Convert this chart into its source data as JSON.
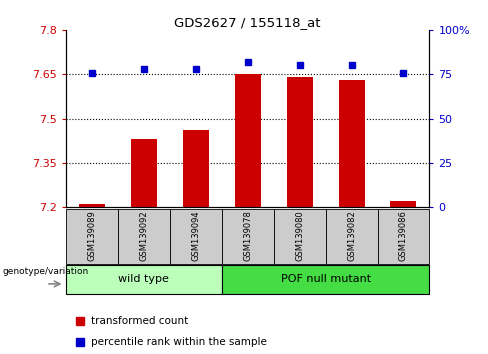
{
  "title": "GDS2627 / 155118_at",
  "samples": [
    "GSM139089",
    "GSM139092",
    "GSM139094",
    "GSM139078",
    "GSM139080",
    "GSM139082",
    "GSM139086"
  ],
  "red_values": [
    7.21,
    7.43,
    7.46,
    7.65,
    7.64,
    7.63,
    7.22
  ],
  "blue_values": [
    76,
    78,
    78,
    82,
    80,
    80,
    76
  ],
  "ylim_left": [
    7.2,
    7.8
  ],
  "ylim_right": [
    0,
    100
  ],
  "yticks_left": [
    7.2,
    7.35,
    7.5,
    7.65,
    7.8
  ],
  "yticks_right": [
    0,
    25,
    50,
    75,
    100
  ],
  "ytick_labels_left": [
    "7.2",
    "7.35",
    "7.5",
    "7.65",
    "7.8"
  ],
  "ytick_labels_right": [
    "0",
    "25",
    "50",
    "75",
    "100%"
  ],
  "hlines": [
    7.35,
    7.5,
    7.65
  ],
  "group_bg_light": "#bbffbb",
  "group_bg_dark": "#44dd44",
  "bar_color": "#cc0000",
  "dot_color": "#0000cc",
  "bar_bottom": 7.2,
  "bar_width": 0.5,
  "legend_red_label": "transformed count",
  "legend_blue_label": "percentile rank within the sample",
  "xlabel_left": "genotype/variation",
  "tick_color_left": "#cc0000",
  "tick_color_right": "#0000cc",
  "sample_box_color": "#cccccc",
  "figsize": [
    4.88,
    3.54
  ],
  "dpi": 100
}
